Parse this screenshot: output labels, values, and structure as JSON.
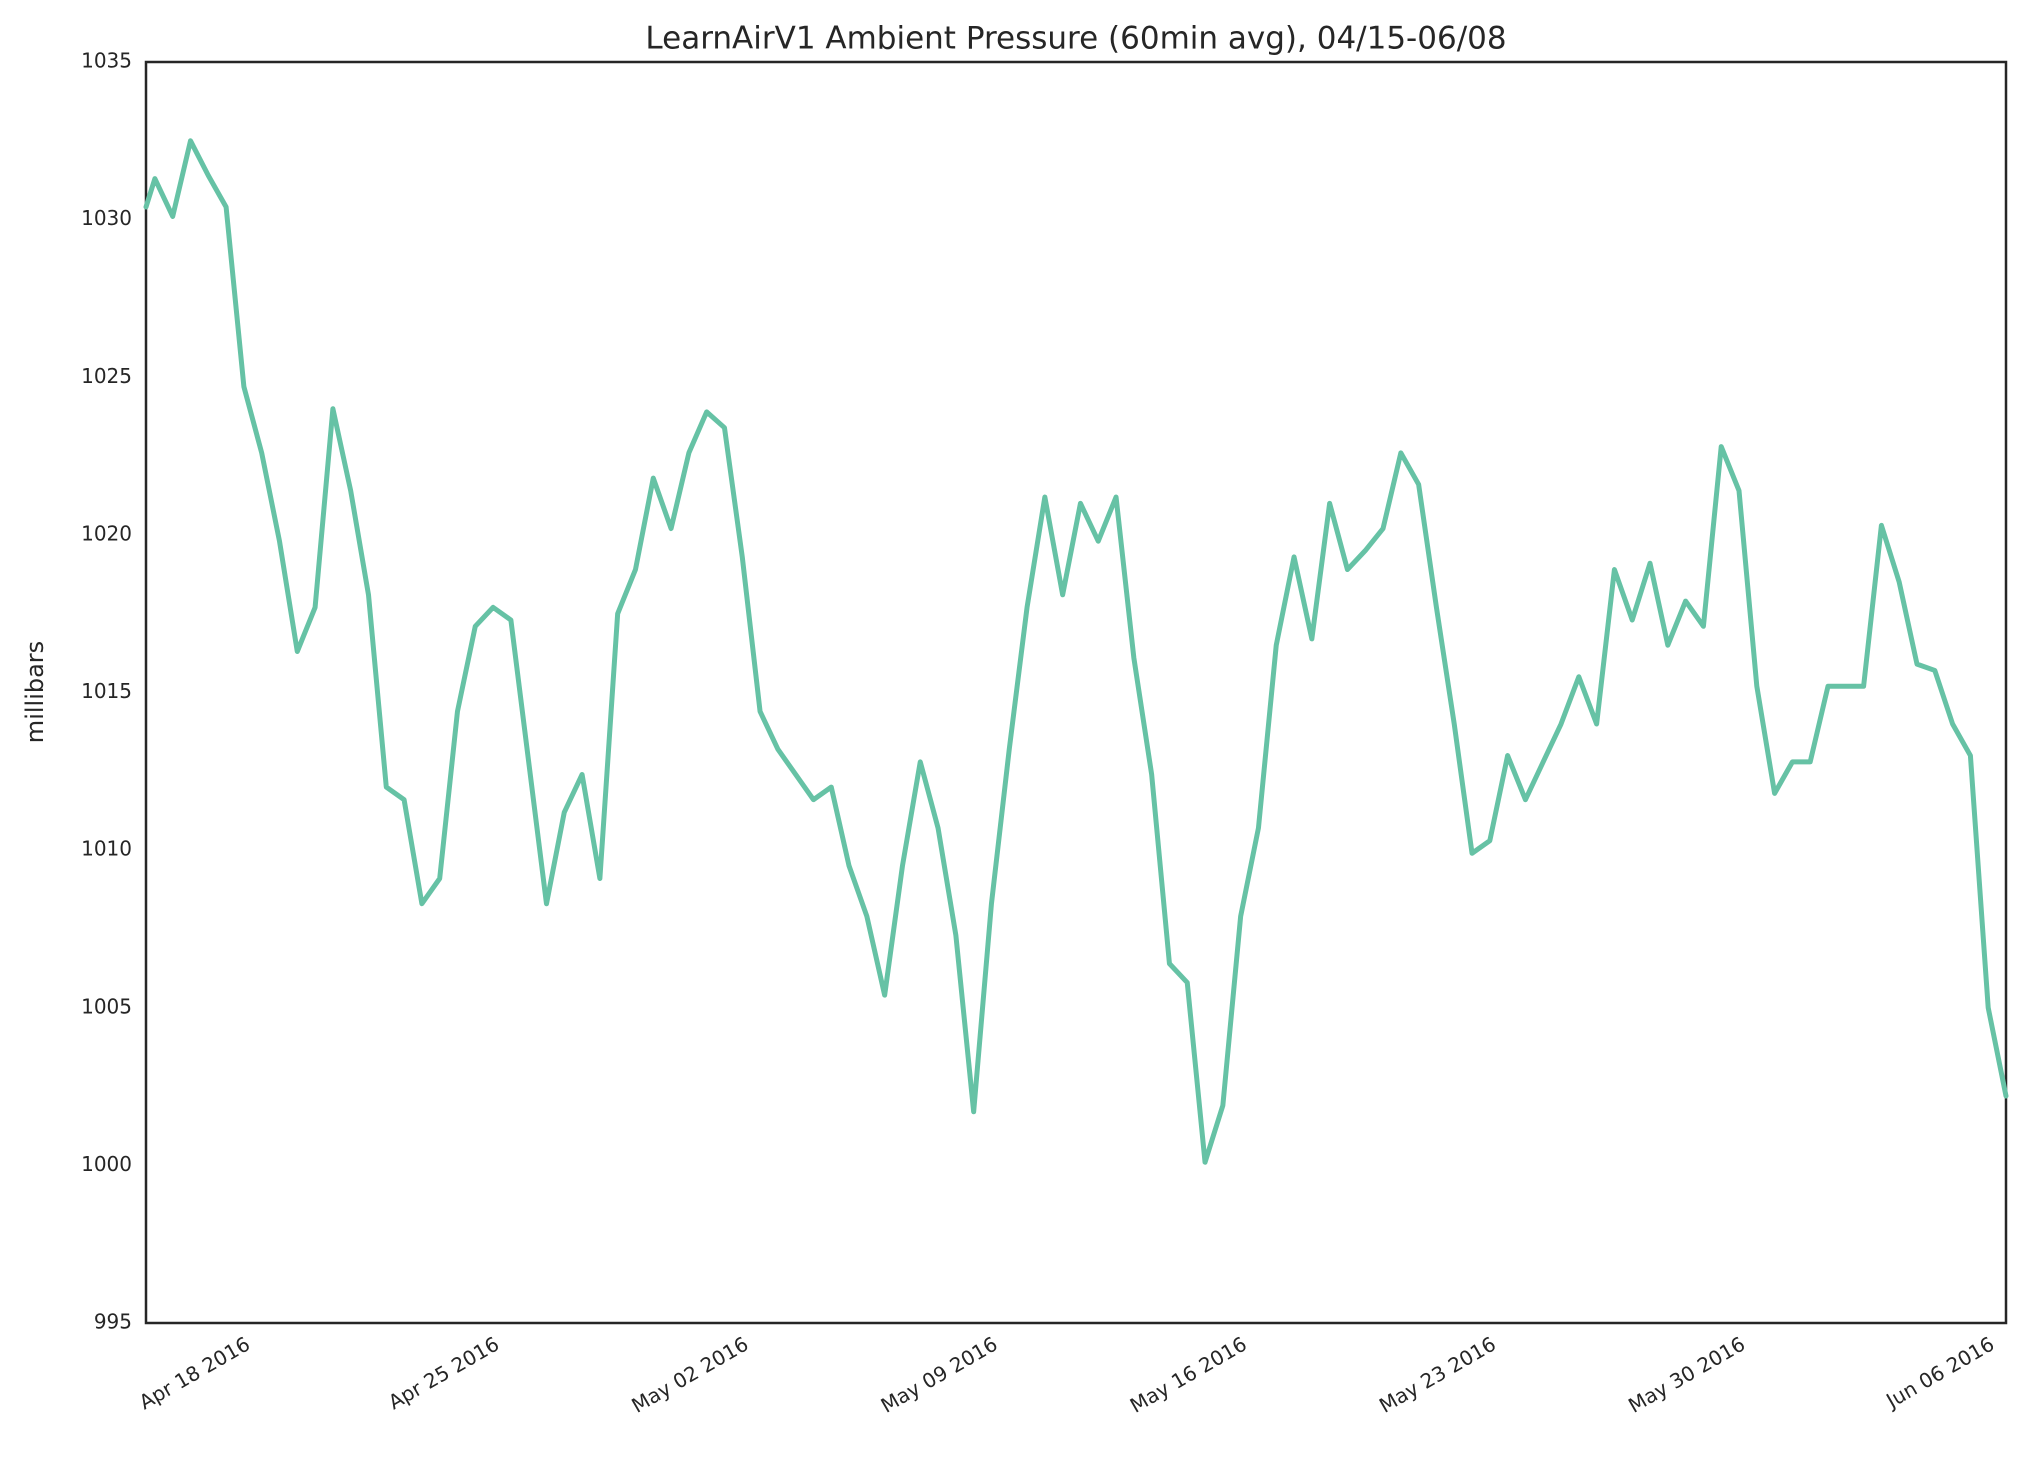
{
  "chart_data": {
    "type": "line",
    "title": "LearnAirV1 Ambient Pressure (60min avg), 04/15-06/08",
    "y_label": "millibars",
    "xlim": [
      "2016-04-15T06:00",
      "2016-06-06T12:00"
    ],
    "ylim": [
      995,
      1035
    ],
    "yticks": [
      995,
      1000,
      1005,
      1010,
      1015,
      1020,
      1025,
      1030,
      1035
    ],
    "xticks": [
      {
        "value": "2016-04-18T00:00",
        "label": "Apr 18 2016"
      },
      {
        "value": "2016-04-25T00:00",
        "label": "Apr 25 2016"
      },
      {
        "value": "2016-05-02T00:00",
        "label": "May 02 2016"
      },
      {
        "value": "2016-05-09T00:00",
        "label": "May 09 2016"
      },
      {
        "value": "2016-05-16T00:00",
        "label": "May 16 2016"
      },
      {
        "value": "2016-05-23T00:00",
        "label": "May 23 2016"
      },
      {
        "value": "2016-05-30T00:00",
        "label": "May 30 2016"
      },
      {
        "value": "2016-06-06T00:00",
        "label": "Jun 06 2016"
      }
    ],
    "grid": false,
    "x": [
      "2016-04-15T06:00",
      "2016-04-15T12:00",
      "2016-04-16T00:00",
      "2016-04-16T12:00",
      "2016-04-17T00:00",
      "2016-04-17T12:00",
      "2016-04-18T00:00",
      "2016-04-18T12:00",
      "2016-04-19T00:00",
      "2016-04-19T12:00",
      "2016-04-20T00:00",
      "2016-04-20T12:00",
      "2016-04-21T00:00",
      "2016-04-21T12:00",
      "2016-04-22T00:00",
      "2016-04-22T12:00",
      "2016-04-23T00:00",
      "2016-04-23T12:00",
      "2016-04-24T00:00",
      "2016-04-24T12:00",
      "2016-04-25T00:00",
      "2016-04-25T12:00",
      "2016-04-26T00:00",
      "2016-04-26T12:00",
      "2016-04-27T00:00",
      "2016-04-27T12:00",
      "2016-04-28T00:00",
      "2016-04-28T12:00",
      "2016-04-29T00:00",
      "2016-04-29T12:00",
      "2016-04-30T00:00",
      "2016-04-30T12:00",
      "2016-05-01T00:00",
      "2016-05-01T12:00",
      "2016-05-02T00:00",
      "2016-05-02T12:00",
      "2016-05-03T00:00",
      "2016-05-03T12:00",
      "2016-05-04T00:00",
      "2016-05-04T12:00",
      "2016-05-05T00:00",
      "2016-05-05T12:00",
      "2016-05-06T00:00",
      "2016-05-06T12:00",
      "2016-05-07T00:00",
      "2016-05-07T12:00",
      "2016-05-08T00:00",
      "2016-05-08T12:00",
      "2016-05-09T00:00",
      "2016-05-09T12:00",
      "2016-05-10T00:00",
      "2016-05-10T12:00",
      "2016-05-11T00:00",
      "2016-05-11T12:00",
      "2016-05-12T00:00",
      "2016-05-12T12:00",
      "2016-05-13T00:00",
      "2016-05-13T12:00",
      "2016-05-14T00:00",
      "2016-05-14T12:00",
      "2016-05-15T00:00",
      "2016-05-15T12:00",
      "2016-05-16T00:00",
      "2016-05-16T12:00",
      "2016-05-17T00:00",
      "2016-05-17T12:00",
      "2016-05-18T00:00",
      "2016-05-18T12:00",
      "2016-05-19T00:00",
      "2016-05-19T12:00",
      "2016-05-20T00:00",
      "2016-05-20T12:00",
      "2016-05-21T00:00",
      "2016-05-21T12:00",
      "2016-05-22T00:00",
      "2016-05-22T12:00",
      "2016-05-23T00:00",
      "2016-05-23T12:00",
      "2016-05-24T00:00",
      "2016-05-24T12:00",
      "2016-05-25T00:00",
      "2016-05-25T12:00",
      "2016-05-26T00:00",
      "2016-05-26T12:00",
      "2016-05-27T00:00",
      "2016-05-27T12:00",
      "2016-05-28T00:00",
      "2016-05-28T12:00",
      "2016-05-29T00:00",
      "2016-05-29T12:00",
      "2016-05-30T00:00",
      "2016-05-30T12:00",
      "2016-05-31T00:00",
      "2016-05-31T12:00",
      "2016-06-01T00:00",
      "2016-06-01T12:00",
      "2016-06-02T00:00",
      "2016-06-02T12:00",
      "2016-06-03T00:00",
      "2016-06-03T12:00",
      "2016-06-04T00:00",
      "2016-06-04T12:00",
      "2016-06-05T00:00",
      "2016-06-05T12:00",
      "2016-06-06T00:00",
      "2016-06-06T12:00"
    ],
    "series": [
      {
        "name": "pressure",
        "color": "#66c2a5",
        "values": [
          1030.4,
          1031.3,
          1030.1,
          1032.5,
          1031.4,
          1030.4,
          1024.7,
          1022.6,
          1019.8,
          1016.3,
          1017.7,
          1024,
          1021.4,
          1018.1,
          1012,
          1011.6,
          1008.3,
          1009.1,
          1014.4,
          1017.1,
          1017.7,
          1017.3,
          1012.8,
          1008.3,
          1011.2,
          1012.4,
          1009.1,
          1017.5,
          1018.9,
          1021.8,
          1020.2,
          1022.6,
          1023.9,
          1023.4,
          1019.3,
          1014.4,
          1013.2,
          1012.4,
          1011.6,
          1012,
          1009.5,
          1007.9,
          1005.4,
          1009.5,
          1012.8,
          1010.7,
          1007.3,
          1001.7,
          1008.3,
          1013.2,
          1017.7,
          1021.2,
          1018.1,
          1021,
          1019.8,
          1021.2,
          1016.1,
          1012.4,
          1006.4,
          1005.8,
          1000.1,
          1001.9,
          1007.9,
          1010.7,
          1016.5,
          1019.3,
          1016.7,
          1021,
          1018.9,
          1019.5,
          1020.2,
          1022.6,
          1021.6,
          1017.7,
          1014,
          1009.9,
          1010.3,
          1013,
          1011.6,
          1012.8,
          1014,
          1015.5,
          1014,
          1018.9,
          1017.3,
          1019.1,
          1016.5,
          1017.9,
          1017.1,
          1022.8,
          1021.4,
          1015.2,
          1011.8,
          1012.8,
          1012.8,
          1015.2,
          1015.2,
          1015.2,
          1020.3,
          1018.5,
          1015.9,
          1015.7,
          1014,
          1013,
          1005,
          1002.2
        ]
      }
    ]
  }
}
